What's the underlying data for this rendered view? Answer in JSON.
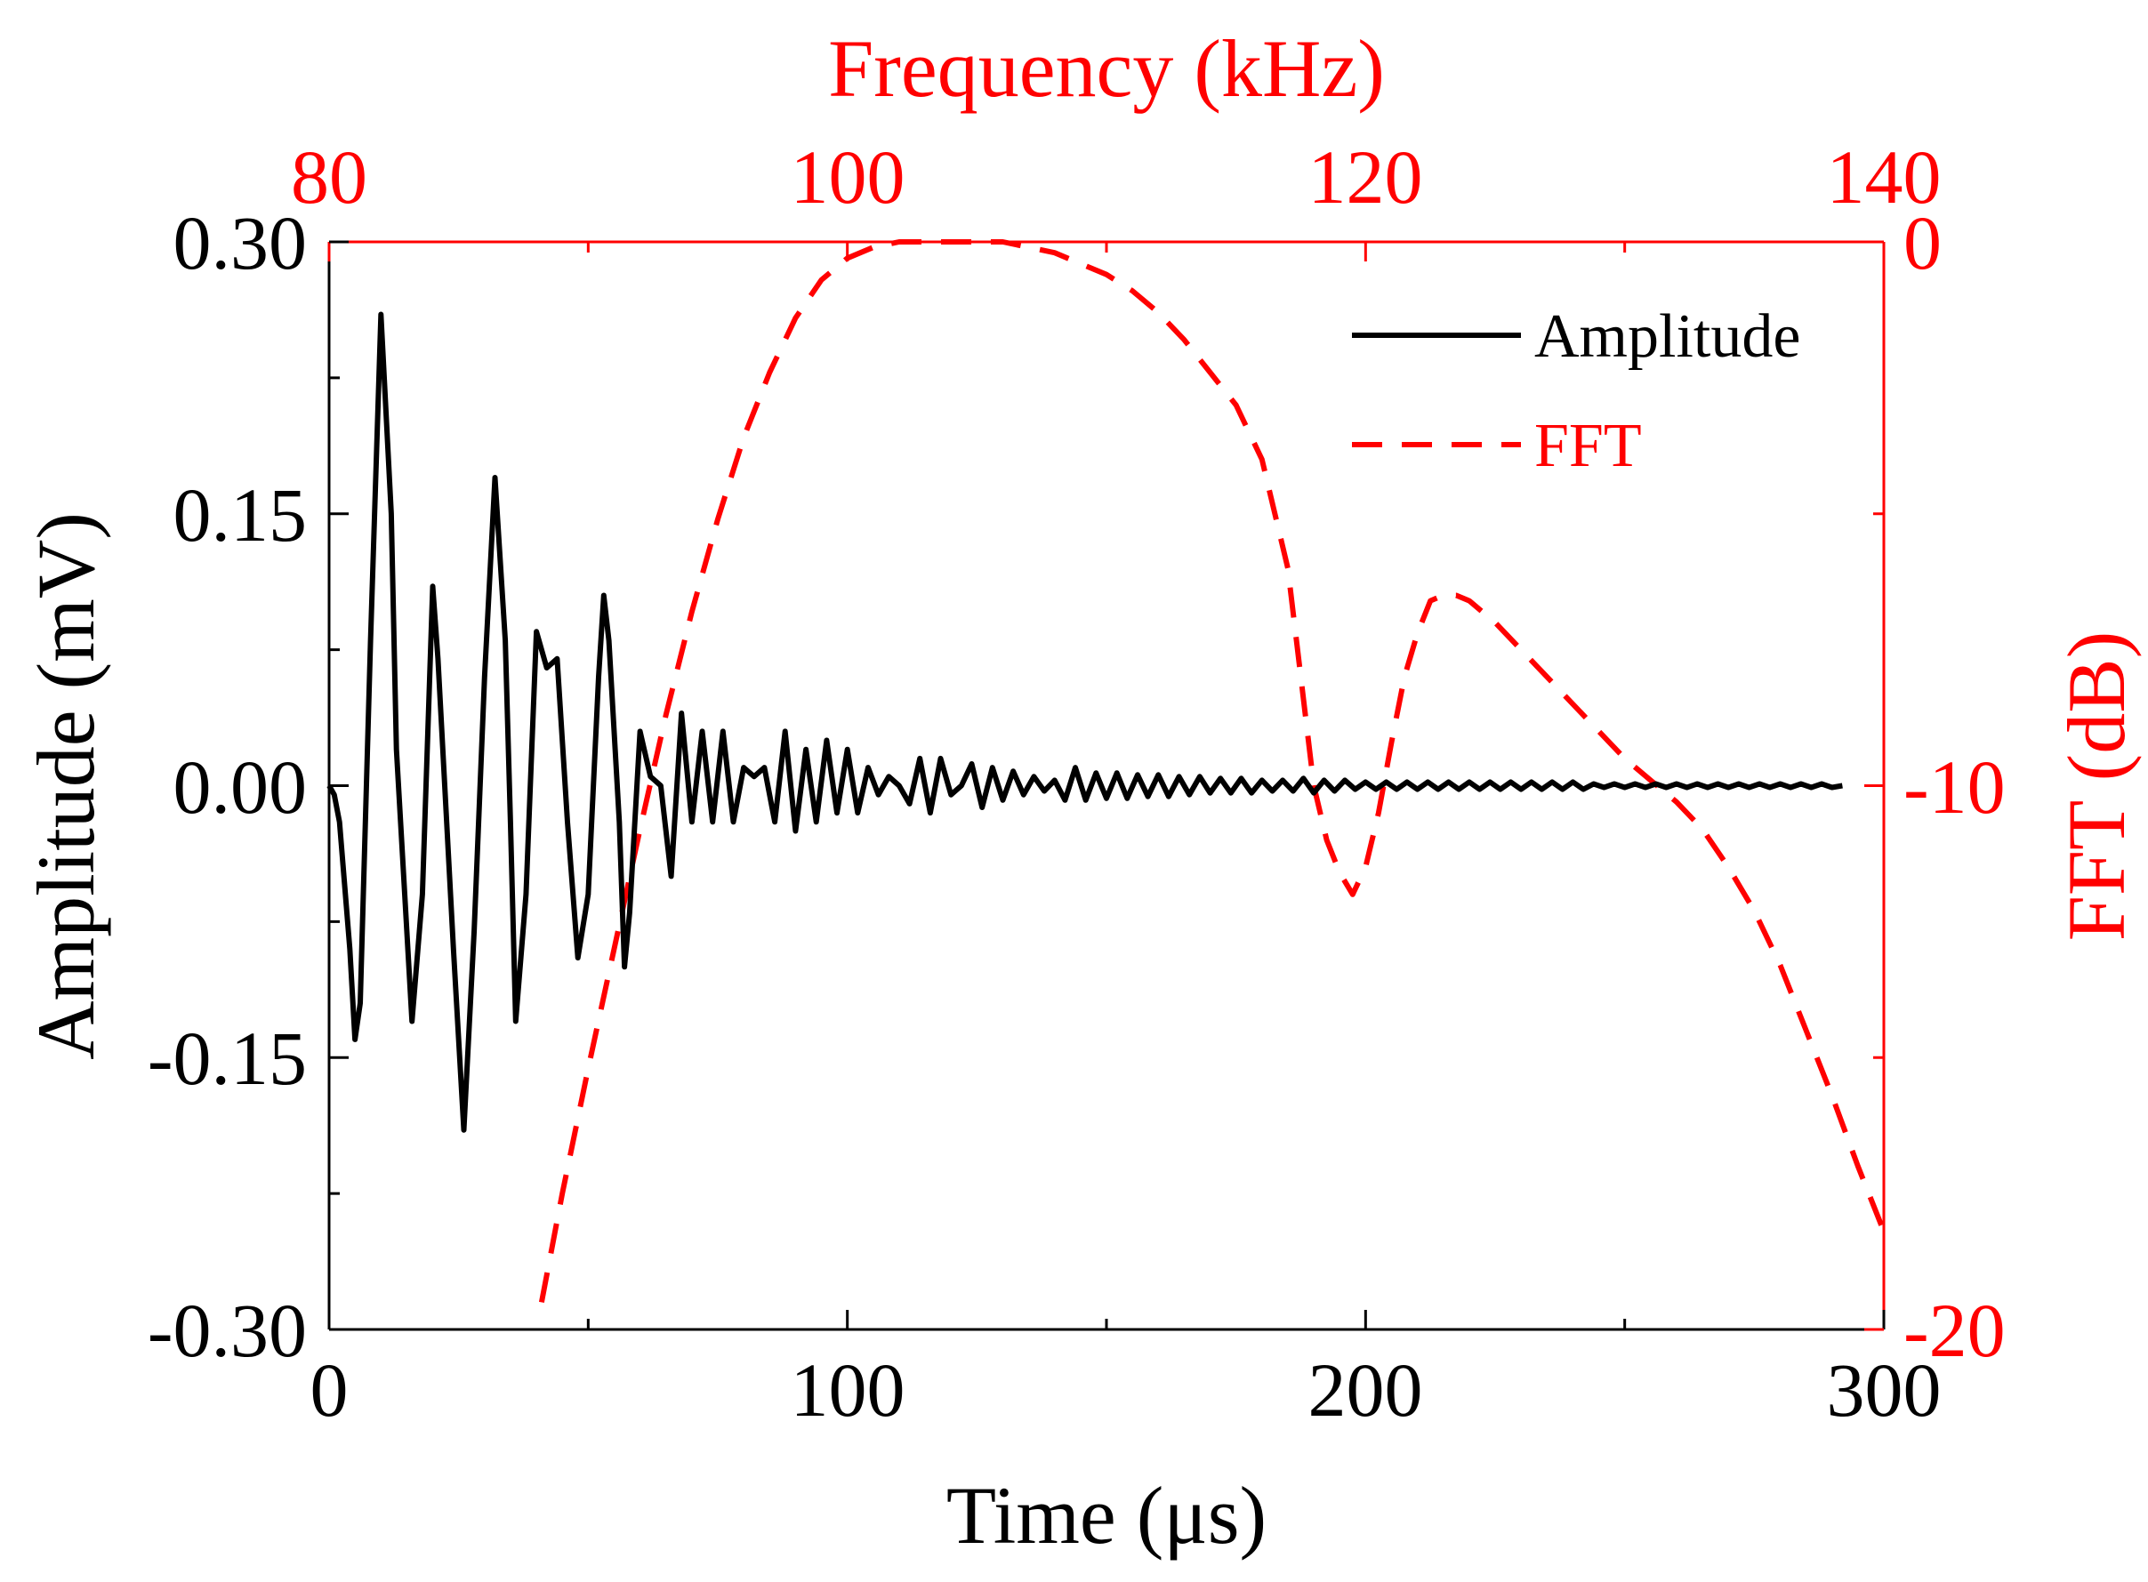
{
  "colors": {
    "amplitude": "#000000",
    "fft": "#ff0000",
    "background": "#ffffff"
  },
  "chart_data": {
    "type": "line",
    "title": "",
    "axes": {
      "x_bottom": {
        "label": "Time (μs)",
        "range": [
          0,
          300
        ],
        "ticks": [
          0,
          100,
          200,
          300
        ],
        "tick_labels": [
          "0",
          "100",
          "200",
          "300"
        ],
        "minor_step": 50
      },
      "x_top": {
        "label": "Frequency (kHz)",
        "range": [
          80,
          140
        ],
        "ticks": [
          80,
          100,
          120,
          140
        ],
        "tick_labels": [
          "80",
          "100",
          "120",
          "140"
        ],
        "minor_step": 10
      },
      "y_left": {
        "label": "Amplitude (mV)",
        "range": [
          -0.3,
          0.3
        ],
        "ticks": [
          -0.3,
          -0.15,
          0,
          0.15,
          0.3
        ],
        "tick_labels": [
          "-0.30",
          "-0.15",
          "0.00",
          "0.15",
          "0.30"
        ],
        "minor_step": 0.075
      },
      "y_right": {
        "label": "FFT (dB)",
        "range": [
          -20,
          0
        ],
        "ticks": [
          -20,
          -10,
          0
        ],
        "tick_labels": [
          "-20",
          "-10",
          "0"
        ],
        "minor_step": 5
      }
    },
    "legend": {
      "placement": "top-right",
      "entries": [
        {
          "label": "Amplitude",
          "style": "solid",
          "series": "amplitude"
        },
        {
          "label": "FFT",
          "style": "dashed",
          "series": "fft"
        }
      ]
    },
    "series": [
      {
        "name": "Amplitude",
        "axis_x": "x_bottom",
        "axis_y": "y_left",
        "style": "solid",
        "x": [
          0,
          1,
          2,
          4,
          5,
          6,
          8,
          10,
          12,
          13,
          16,
          18,
          20,
          21,
          24,
          26,
          28,
          30,
          32,
          34,
          35,
          36,
          38,
          40,
          42,
          44,
          46,
          48,
          50,
          52,
          53,
          54,
          56,
          57,
          58,
          60,
          62,
          64,
          66,
          68,
          70,
          72,
          74,
          76,
          78,
          80,
          82,
          84,
          86,
          88,
          90,
          92,
          94,
          96,
          98,
          100,
          102,
          104,
          106,
          108,
          110,
          112,
          114,
          116,
          118,
          120,
          122,
          124,
          126,
          128,
          130,
          132,
          134,
          136,
          138,
          140,
          142,
          144,
          146,
          148,
          150,
          152,
          154,
          156,
          158,
          160,
          162,
          164,
          166,
          168,
          170,
          172,
          174,
          176,
          178,
          180,
          182,
          184,
          186,
          188,
          190,
          192,
          194,
          196,
          198,
          200,
          202,
          204,
          206,
          208,
          210,
          212,
          214,
          216,
          218,
          220,
          222,
          224,
          226,
          228,
          230,
          232,
          234,
          236,
          238,
          240,
          242,
          244,
          246,
          248,
          250,
          252,
          254,
          256,
          258,
          260,
          262,
          264,
          266,
          268,
          270,
          272,
          274,
          276,
          278,
          280,
          282,
          284,
          286,
          288,
          290,
          292
        ],
        "y": [
          0.0,
          -0.005,
          -0.02,
          -0.09,
          -0.14,
          -0.12,
          0.08,
          0.26,
          0.15,
          0.02,
          -0.13,
          -0.06,
          0.11,
          0.07,
          -0.09,
          -0.19,
          -0.08,
          0.06,
          0.17,
          0.08,
          -0.02,
          -0.13,
          -0.06,
          0.085,
          0.065,
          0.07,
          -0.02,
          -0.095,
          -0.06,
          0.06,
          0.105,
          0.08,
          -0.02,
          -0.1,
          -0.07,
          0.03,
          0.005,
          0.0,
          -0.05,
          0.04,
          -0.02,
          0.03,
          -0.02,
          0.03,
          -0.02,
          0.01,
          0.005,
          0.01,
          -0.02,
          0.03,
          -0.025,
          0.02,
          -0.02,
          0.025,
          -0.015,
          0.02,
          -0.015,
          0.01,
          -0.005,
          0.005,
          0.0,
          -0.01,
          0.015,
          -0.015,
          0.015,
          -0.005,
          0.0,
          0.012,
          -0.012,
          0.01,
          -0.008,
          0.008,
          -0.005,
          0.005,
          -0.003,
          0.003,
          -0.008,
          0.01,
          -0.008,
          0.007,
          -0.007,
          0.007,
          -0.007,
          0.006,
          -0.006,
          0.006,
          -0.006,
          0.005,
          -0.005,
          0.005,
          -0.004,
          0.004,
          -0.004,
          0.004,
          -0.004,
          0.003,
          -0.003,
          0.003,
          -0.003,
          0.004,
          -0.004,
          0.003,
          -0.003,
          0.003,
          -0.002,
          0.002,
          -0.002,
          0.002,
          -0.002,
          0.002,
          -0.002,
          0.002,
          -0.002,
          0.002,
          -0.002,
          0.002,
          -0.002,
          0.002,
          -0.002,
          0.002,
          -0.002,
          0.002,
          -0.002,
          0.002,
          -0.002,
          0.002,
          -0.002,
          0.001,
          -0.001,
          0.001,
          -0.001,
          0.001,
          -0.001,
          0.001,
          -0.001,
          0.001,
          -0.001,
          0.001,
          -0.001,
          0.001,
          -0.001,
          0.001,
          -0.001,
          0.001,
          -0.001,
          0.001,
          -0.001,
          0.001,
          -0.001,
          0.001,
          -0.001,
          0.0
        ]
      },
      {
        "name": "FFT",
        "axis_x": "x_top",
        "axis_y": "y_right",
        "style": "dashed",
        "x": [
          88.2,
          89.0,
          90.0,
          91.0,
          92.0,
          93.0,
          94.0,
          95.0,
          96.0,
          97.0,
          98.0,
          99.0,
          100.0,
          101.0,
          102.0,
          103.0,
          104.0,
          105.0,
          106.0,
          107.0,
          108.0,
          109.0,
          110.0,
          111.0,
          112.0,
          113.0,
          114.0,
          115.0,
          116.0,
          117.0,
          117.5,
          118.0,
          118.5,
          119.0,
          119.5,
          120.0,
          120.5,
          121.0,
          121.5,
          122.0,
          122.5,
          123.0,
          123.5,
          124.0,
          125.0,
          126.0,
          127.0,
          128.0,
          129.0,
          130.0,
          131.0,
          132.0,
          133.0,
          134.0,
          135.0,
          136.0,
          137.0,
          138.0,
          139.0,
          140.0
        ],
        "y": [
          -19.5,
          -17.5,
          -15.2,
          -13.0,
          -10.8,
          -8.7,
          -6.8,
          -5.1,
          -3.6,
          -2.4,
          -1.4,
          -0.7,
          -0.3,
          -0.1,
          0.0,
          0.0,
          0.0,
          0.0,
          0.0,
          -0.1,
          -0.2,
          -0.4,
          -0.6,
          -0.9,
          -1.3,
          -1.8,
          -2.4,
          -3.0,
          -4.0,
          -6.0,
          -8.0,
          -10.0,
          -11.0,
          -11.6,
          -12.0,
          -11.5,
          -10.5,
          -9.2,
          -8.0,
          -7.2,
          -6.6,
          -6.5,
          -6.5,
          -6.6,
          -7.0,
          -7.5,
          -8.0,
          -8.5,
          -9.0,
          -9.5,
          -9.9,
          -10.3,
          -10.8,
          -11.5,
          -12.3,
          -13.3,
          -14.5,
          -15.7,
          -17.0,
          -18.2
        ]
      }
    ]
  }
}
